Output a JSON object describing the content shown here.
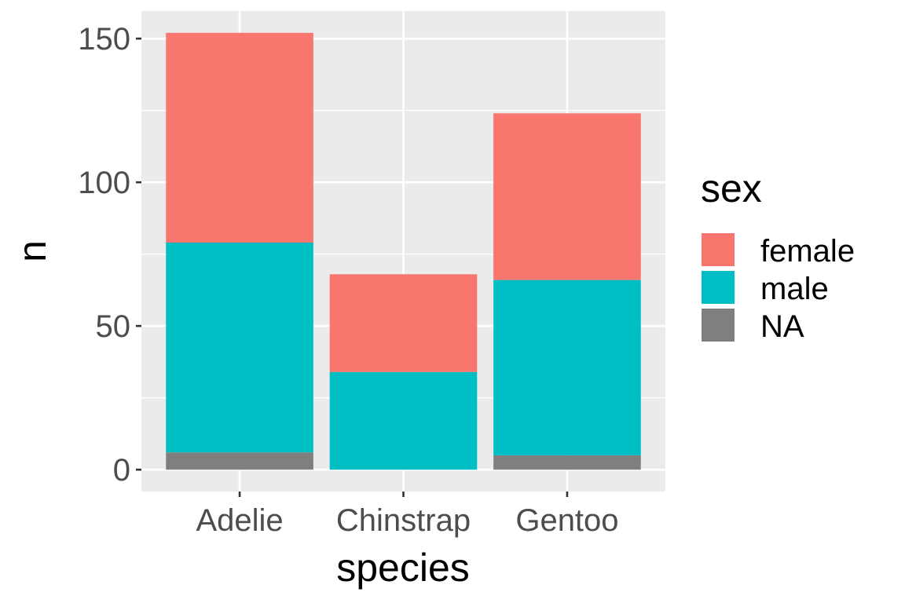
{
  "chart_data": {
    "type": "bar",
    "stacked": true,
    "categories": [
      "Adelie",
      "Chinstrap",
      "Gentoo"
    ],
    "series": [
      {
        "name": "female",
        "color": "#F8766D",
        "values": [
          73,
          34,
          58
        ]
      },
      {
        "name": "male",
        "color": "#00BFC4",
        "values": [
          73,
          34,
          61
        ]
      },
      {
        "name": "NA",
        "color": "#7F7F7F",
        "values": [
          6,
          0,
          5
        ]
      }
    ],
    "xlabel": "species",
    "ylabel": "n",
    "ylim": [
      -7.6,
      159.6
    ],
    "yticks": [
      0,
      50,
      100,
      150
    ],
    "grid": true,
    "legend": {
      "title": "sex",
      "position": "right"
    },
    "colors": {
      "panel": "#EBEBEB",
      "grid": "#FFFFFF"
    }
  }
}
